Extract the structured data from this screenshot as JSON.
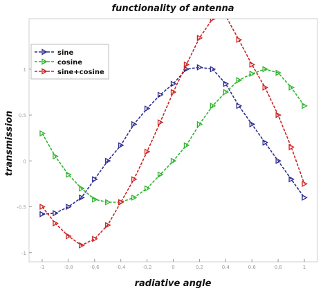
{
  "chart_data": {
    "type": "line",
    "title": "functionality of antenna",
    "xlabel": "radiative angle",
    "ylabel": "transmission",
    "xlim": [
      -1.1,
      1.1
    ],
    "ylim": [
      -1.1,
      1.55
    ],
    "xticks": [
      -1,
      -0.8,
      -0.6,
      -0.4,
      -0.2,
      0,
      0.2,
      0.4,
      0.6,
      0.8,
      1
    ],
    "xtick_labels": [
      "-1",
      "-0.8",
      "-0.6",
      "-0.4",
      "-0.2",
      "0",
      "0.2",
      "0.4",
      "0.6",
      "0.8",
      "1"
    ],
    "yticks": [
      -1,
      -0.5,
      0,
      0.5,
      1
    ],
    "ytick_labels": [
      "-1",
      "-0.5",
      "0",
      "0.5",
      "1"
    ],
    "grid": false,
    "legend_position": "top-left",
    "x": [
      -1.0,
      -0.9,
      -0.8,
      -0.7,
      -0.6,
      -0.5,
      -0.4,
      -0.3,
      -0.2,
      -0.1,
      0.0,
      0.1,
      0.2,
      0.3,
      0.4,
      0.5,
      0.6,
      0.7,
      0.8,
      0.9,
      1.0
    ],
    "series": [
      {
        "name": "sine",
        "color": "#2b2b8f",
        "values": [
          -0.58,
          -0.57,
          -0.5,
          -0.4,
          -0.2,
          0.0,
          0.17,
          0.4,
          0.57,
          0.72,
          0.84,
          1.0,
          1.02,
          1.0,
          0.84,
          0.6,
          0.4,
          0.2,
          0.0,
          -0.2,
          -0.4
        ]
      },
      {
        "name": "cosine",
        "color": "#2db52d",
        "values": [
          0.3,
          0.05,
          -0.15,
          -0.3,
          -0.42,
          -0.45,
          -0.45,
          -0.4,
          -0.3,
          -0.15,
          0.0,
          0.17,
          0.4,
          0.6,
          0.75,
          0.88,
          0.95,
          1.0,
          0.96,
          0.8,
          0.6
        ]
      },
      {
        "name": "sine+cosine",
        "color": "#cc2222",
        "values": [
          -0.5,
          -0.68,
          -0.82,
          -0.92,
          -0.85,
          -0.7,
          -0.45,
          -0.2,
          0.1,
          0.42,
          0.75,
          1.05,
          1.34,
          1.55,
          1.58,
          1.32,
          1.05,
          0.8,
          0.5,
          0.15,
          -0.25
        ]
      }
    ]
  }
}
